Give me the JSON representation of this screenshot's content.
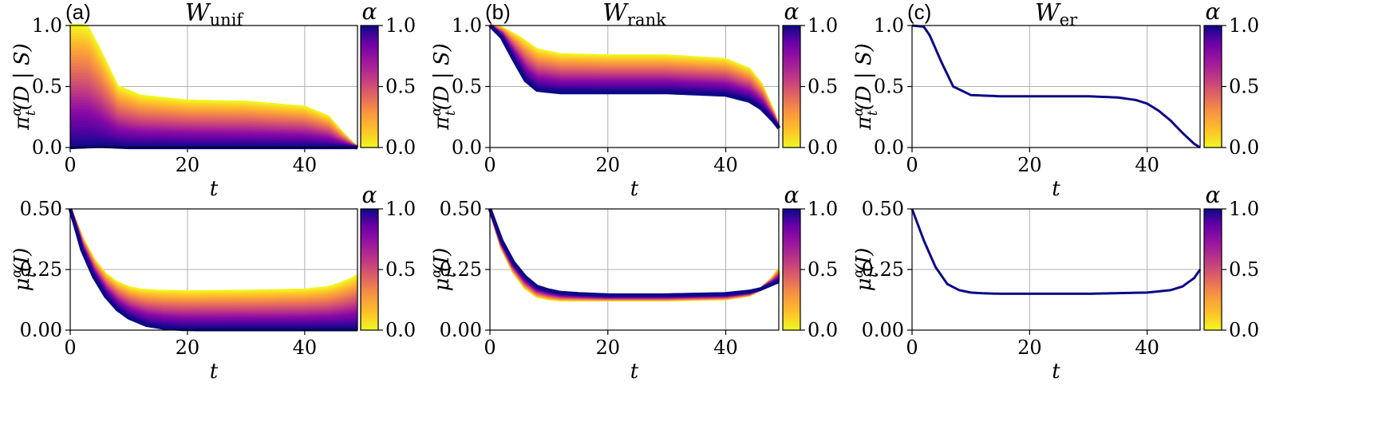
{
  "colors": {
    "colormap": "plasma (reversed)",
    "alpha_low": "#F0F921",
    "alpha_mid": "#E16462",
    "alpha_high": "#0D0887",
    "grid": "#b0b0b0"
  },
  "colorbar": {
    "title": "α",
    "ticks": [
      "0.0",
      "0.5",
      "1.0"
    ],
    "range": [
      0,
      1
    ]
  },
  "chart_data": [
    {
      "type": "area",
      "panel_tag": "(a)",
      "title_main": "W",
      "title_sub": "unif",
      "xlabel": "t",
      "ylabel_main": "π",
      "ylabel_sup": "α",
      "ylabel_sub": "t",
      "ylabel_rest": "(D | S)",
      "xlim": [
        0,
        49
      ],
      "ylim": [
        0,
        1
      ],
      "xticks": [
        0,
        20,
        40
      ],
      "xtick_labels": [
        "0",
        "20",
        "40"
      ],
      "yticks": [
        0,
        0.5,
        1.0
      ],
      "ytick_labels": [
        "0.0",
        "0.5",
        "1.0"
      ],
      "grid": true,
      "series": [
        {
          "alpha": 0.0,
          "x": [
            0,
            2,
            3,
            5,
            8,
            12,
            20,
            30,
            40,
            44,
            46,
            48,
            49
          ],
          "values": [
            1.0,
            1.0,
            0.98,
            0.8,
            0.5,
            0.42,
            0.38,
            0.37,
            0.33,
            0.25,
            0.14,
            0.04,
            0.0
          ]
        },
        {
          "alpha": 1.0,
          "x": [
            0,
            5,
            10,
            20,
            30,
            40,
            46,
            49
          ],
          "values": [
            0.0,
            0.01,
            0.0,
            0.0,
            0.0,
            0.0,
            0.0,
            0.0
          ]
        }
      ]
    },
    {
      "type": "area",
      "panel_tag": "(b)",
      "title_main": "W",
      "title_sub": "rank",
      "xlabel": "t",
      "ylabel_main": "π",
      "ylabel_sup": "α",
      "ylabel_sub": "t",
      "ylabel_rest": "(D | S)",
      "xlim": [
        0,
        49
      ],
      "ylim": [
        0,
        1
      ],
      "xticks": [
        0,
        20,
        40
      ],
      "xtick_labels": [
        "0",
        "20",
        "40"
      ],
      "yticks": [
        0,
        0.5,
        1.0
      ],
      "ytick_labels": [
        "0.0",
        "0.5",
        "1.0"
      ],
      "grid": true,
      "series": [
        {
          "alpha": 0.0,
          "x": [
            0,
            2,
            5,
            8,
            12,
            20,
            30,
            40,
            44,
            46,
            48,
            49
          ],
          "values": [
            1.0,
            0.98,
            0.9,
            0.8,
            0.76,
            0.75,
            0.75,
            0.72,
            0.64,
            0.52,
            0.3,
            0.16
          ]
        },
        {
          "alpha": 1.0,
          "x": [
            0,
            2,
            4,
            6,
            8,
            12,
            20,
            30,
            40,
            44,
            46,
            48,
            49
          ],
          "values": [
            1.0,
            0.9,
            0.72,
            0.55,
            0.47,
            0.45,
            0.45,
            0.45,
            0.43,
            0.38,
            0.32,
            0.22,
            0.16
          ]
        }
      ]
    },
    {
      "type": "line",
      "panel_tag": "(c)",
      "title_main": "W",
      "title_sub": "er",
      "xlabel": "t",
      "ylabel_main": "π",
      "ylabel_sup": "α",
      "ylabel_sub": "t",
      "ylabel_rest": "(D | S)",
      "xlim": [
        0,
        49
      ],
      "ylim": [
        0,
        1
      ],
      "xticks": [
        0,
        20,
        40
      ],
      "xtick_labels": [
        "0",
        "20",
        "40"
      ],
      "yticks": [
        0,
        0.5,
        1.0
      ],
      "ytick_labels": [
        "0.0",
        "0.5",
        "1.0"
      ],
      "grid": true,
      "series": [
        {
          "alpha": 1.0,
          "x": [
            0,
            2,
            3,
            5,
            7,
            10,
            15,
            20,
            30,
            35,
            38,
            40,
            42,
            44,
            46,
            48,
            49
          ],
          "values": [
            1.0,
            0.99,
            0.92,
            0.7,
            0.5,
            0.43,
            0.42,
            0.42,
            0.42,
            0.41,
            0.39,
            0.36,
            0.3,
            0.22,
            0.12,
            0.03,
            0.0
          ]
        }
      ]
    },
    {
      "type": "area",
      "panel_tag": "",
      "title_main": "",
      "title_sub": "",
      "xlabel": "t",
      "ylabel_main": "μ",
      "ylabel_sup": "α",
      "ylabel_sub": "t",
      "ylabel_rest": "(I)",
      "xlim": [
        0,
        49
      ],
      "ylim": [
        0,
        0.5
      ],
      "xticks": [
        0,
        20,
        40
      ],
      "xtick_labels": [
        "0",
        "20",
        "40"
      ],
      "yticks": [
        0,
        0.25,
        0.5
      ],
      "ytick_labels": [
        "0.00",
        "0.25",
        "0.50"
      ],
      "grid": true,
      "series": [
        {
          "alpha": 0.0,
          "x": [
            0,
            2,
            4,
            6,
            8,
            10,
            12,
            15,
            20,
            30,
            40,
            44,
            46,
            48,
            49
          ],
          "values": [
            0.5,
            0.38,
            0.29,
            0.23,
            0.195,
            0.175,
            0.165,
            0.16,
            0.158,
            0.16,
            0.165,
            0.175,
            0.19,
            0.21,
            0.225
          ]
        },
        {
          "alpha": 1.0,
          "x": [
            0,
            2,
            4,
            6,
            8,
            10,
            13,
            16,
            19,
            22,
            30,
            40,
            49
          ],
          "values": [
            0.5,
            0.33,
            0.22,
            0.14,
            0.085,
            0.05,
            0.02,
            0.008,
            0.003,
            0.002,
            0.002,
            0.002,
            0.002
          ]
        }
      ]
    },
    {
      "type": "area",
      "panel_tag": "",
      "title_main": "",
      "title_sub": "",
      "xlabel": "t",
      "ylabel_main": "μ",
      "ylabel_sup": "α",
      "ylabel_sub": "t",
      "ylabel_rest": "(I)",
      "xlim": [
        0,
        49
      ],
      "ylim": [
        0,
        0.5
      ],
      "xticks": [
        0,
        20,
        40
      ],
      "xtick_labels": [
        "0",
        "20",
        "40"
      ],
      "yticks": [
        0,
        0.25,
        0.5
      ],
      "ytick_labels": [
        "0.00",
        "0.25",
        "0.50"
      ],
      "grid": true,
      "series": [
        {
          "alpha": 0.0,
          "x": [
            0,
            2,
            4,
            6,
            8,
            10,
            12,
            15,
            20,
            30,
            40,
            44,
            46,
            48,
            49
          ],
          "values": [
            0.5,
            0.34,
            0.24,
            0.175,
            0.14,
            0.13,
            0.125,
            0.125,
            0.125,
            0.125,
            0.13,
            0.145,
            0.17,
            0.215,
            0.25
          ]
        },
        {
          "alpha": 1.0,
          "x": [
            0,
            2,
            4,
            6,
            8,
            10,
            12,
            15,
            20,
            30,
            40,
            44,
            46,
            48,
            49
          ],
          "values": [
            0.5,
            0.37,
            0.28,
            0.22,
            0.18,
            0.165,
            0.155,
            0.15,
            0.145,
            0.145,
            0.15,
            0.16,
            0.17,
            0.19,
            0.2
          ]
        }
      ]
    },
    {
      "type": "line",
      "panel_tag": "",
      "title_main": "",
      "title_sub": "",
      "xlabel": "t",
      "ylabel_main": "μ",
      "ylabel_sup": "α",
      "ylabel_sub": "t",
      "ylabel_rest": "(I)",
      "xlim": [
        0,
        49
      ],
      "ylim": [
        0,
        0.5
      ],
      "xticks": [
        0,
        20,
        40
      ],
      "xtick_labels": [
        "0",
        "20",
        "40"
      ],
      "yticks": [
        0,
        0.25,
        0.5
      ],
      "ytick_labels": [
        "0.00",
        "0.25",
        "0.50"
      ],
      "grid": true,
      "series": [
        {
          "alpha": 1.0,
          "x": [
            0,
            2,
            4,
            6,
            8,
            10,
            12,
            15,
            20,
            30,
            40,
            44,
            46,
            48,
            49
          ],
          "values": [
            0.5,
            0.37,
            0.26,
            0.19,
            0.165,
            0.155,
            0.152,
            0.15,
            0.15,
            0.15,
            0.155,
            0.165,
            0.18,
            0.215,
            0.25
          ]
        }
      ]
    }
  ]
}
